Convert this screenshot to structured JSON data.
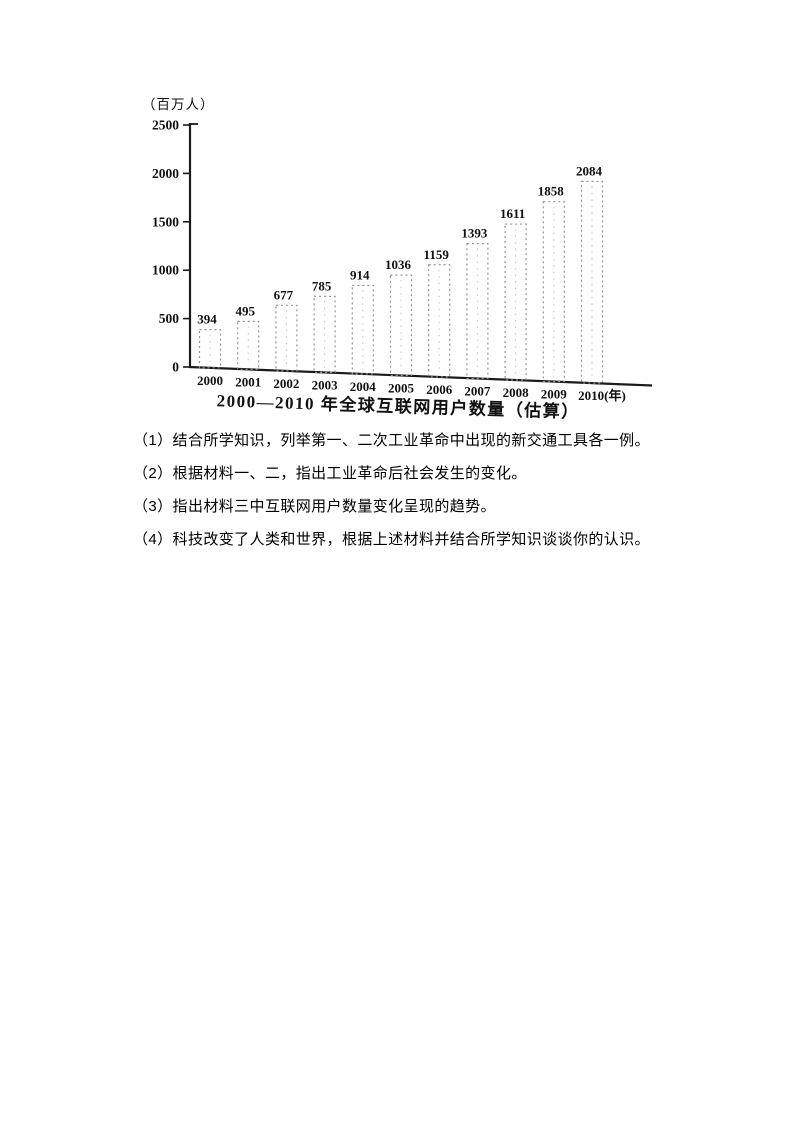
{
  "page": {
    "background": "#ffffff",
    "text_color": "#000000"
  },
  "chart_data": {
    "type": "bar",
    "title": "2000—2010 年全球互联网用户数量（估算）",
    "unit_label": "（百万人）",
    "x_axis_suffix": "(年)",
    "categories": [
      "2000",
      "2001",
      "2002",
      "2003",
      "2004",
      "2005",
      "2006",
      "2007",
      "2008",
      "2009",
      "2010"
    ],
    "values": [
      394,
      495,
      677,
      785,
      914,
      1036,
      1159,
      1393,
      1611,
      1858,
      2084
    ],
    "ylim": [
      0,
      2500
    ],
    "yticks": [
      0,
      500,
      1000,
      1500,
      2000,
      2500
    ],
    "grid": false,
    "legend_position": "none",
    "colors": {
      "axis": "#1a1a1a",
      "bar_outline": "#949494",
      "bar_fill": "#ffffff",
      "label_text": "#111111"
    }
  },
  "questions": [
    "（1）结合所学知识，列举第一、二次工业革命中出现的新交通工具各一例。",
    "（2）根据材料一、二，指出工业革命后社会发生的变化。",
    "（3）指出材料三中互联网用户数量变化呈现的趋势。",
    "（4）科技改变了人类和世界，根据上述材料并结合所学知识谈谈你的认识。"
  ]
}
